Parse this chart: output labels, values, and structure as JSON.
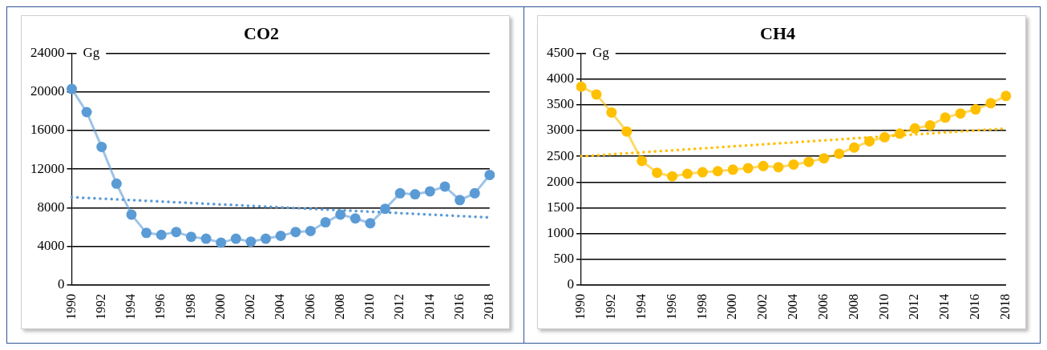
{
  "chart_data": [
    {
      "type": "line",
      "title": "CO2",
      "ylabel": "Gg",
      "categories": [
        "1990",
        null,
        "1992",
        null,
        "1994",
        null,
        "1996",
        null,
        "1998",
        null,
        "2000",
        null,
        "2002",
        null,
        "2004",
        null,
        "2006",
        null,
        "2008",
        null,
        "2010",
        null,
        "2012",
        null,
        "2014",
        null,
        "2016",
        null,
        "2018"
      ],
      "series": [
        {
          "color": "#5b9bd5",
          "marker": "circle",
          "line_style": "solid",
          "values": [
            20300,
            17900,
            14300,
            10500,
            7300,
            5400,
            5200,
            5500,
            5000,
            4800,
            4400,
            4800,
            4500,
            4800,
            5100,
            5500,
            5600,
            6500,
            7300,
            6900,
            6400,
            7900,
            9500,
            9400,
            9700,
            10200,
            8800,
            9500,
            11400
          ]
        },
        {
          "color": "#5b9bd5",
          "marker": "none",
          "line_style": "dotted",
          "values": [
            9100,
            null,
            null,
            null,
            null,
            null,
            null,
            null,
            null,
            null,
            null,
            null,
            null,
            null,
            null,
            null,
            null,
            null,
            null,
            null,
            null,
            null,
            null,
            null,
            null,
            null,
            null,
            null,
            7000
          ]
        }
      ],
      "ylim": [
        0,
        24000
      ],
      "yticks": [
        0,
        4000,
        8000,
        12000,
        16000,
        20000,
        24000
      ],
      "grid": "y"
    },
    {
      "type": "line",
      "title": "CH4",
      "ylabel": "Gg",
      "categories": [
        "1990",
        null,
        "1992",
        null,
        "1994",
        null,
        "1996",
        null,
        "1998",
        null,
        "2000",
        null,
        "2002",
        null,
        "2004",
        null,
        "2006",
        null,
        "2008",
        null,
        "2010",
        null,
        "2012",
        null,
        "2014",
        null,
        "2016",
        null,
        "2018"
      ],
      "series": [
        {
          "color": "#ffc000",
          "marker": "circle",
          "line_style": "solid",
          "values": [
            3850,
            3700,
            3350,
            2980,
            2410,
            2180,
            2110,
            2160,
            2190,
            2210,
            2240,
            2270,
            2310,
            2290,
            2340,
            2390,
            2460,
            2550,
            2670,
            2790,
            2870,
            2940,
            3040,
            3100,
            3250,
            3330,
            3410,
            3530,
            3670
          ]
        },
        {
          "color": "#ffc000",
          "marker": "none",
          "line_style": "dotted",
          "values": [
            2500,
            null,
            null,
            null,
            null,
            null,
            null,
            null,
            null,
            null,
            null,
            null,
            null,
            null,
            null,
            null,
            null,
            null,
            null,
            null,
            null,
            null,
            null,
            null,
            null,
            null,
            null,
            null,
            3040
          ]
        }
      ],
      "ylim": [
        0,
        4500
      ],
      "yticks": [
        0,
        500,
        1000,
        1500,
        2000,
        2500,
        3000,
        3500,
        4000,
        4500
      ],
      "grid": "y"
    }
  ]
}
